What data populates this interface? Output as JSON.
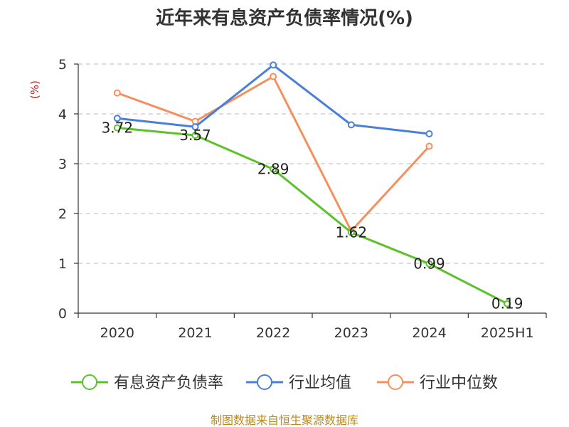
{
  "chart_data": {
    "type": "line",
    "title": "近年来有息资产负债率情况(%)",
    "ylabel": "(%)",
    "xlabel": "",
    "categories": [
      "2020",
      "2021",
      "2022",
      "2023",
      "2024",
      "2025H1"
    ],
    "ylim": [
      0,
      5
    ],
    "yticks": [
      0,
      1,
      2,
      3,
      4,
      5
    ],
    "grid": true,
    "legend_position": "bottom",
    "series": [
      {
        "name": "有息资产负债率",
        "color": "#5cc12a",
        "values": [
          3.72,
          3.57,
          2.89,
          1.62,
          0.99,
          0.19
        ],
        "labels": [
          "3.72",
          "3.57",
          "2.89",
          "1.62",
          "0.99",
          "0.19"
        ]
      },
      {
        "name": "行业均值",
        "color": "#4a7fd9",
        "values": [
          3.91,
          3.74,
          4.98,
          3.78,
          3.6,
          null
        ]
      },
      {
        "name": "行业中位数",
        "color": "#f5905e",
        "values": [
          4.42,
          3.85,
          4.75,
          1.65,
          3.35,
          null
        ]
      }
    ]
  },
  "source_text": "制图数据来自恒生聚源数据库"
}
